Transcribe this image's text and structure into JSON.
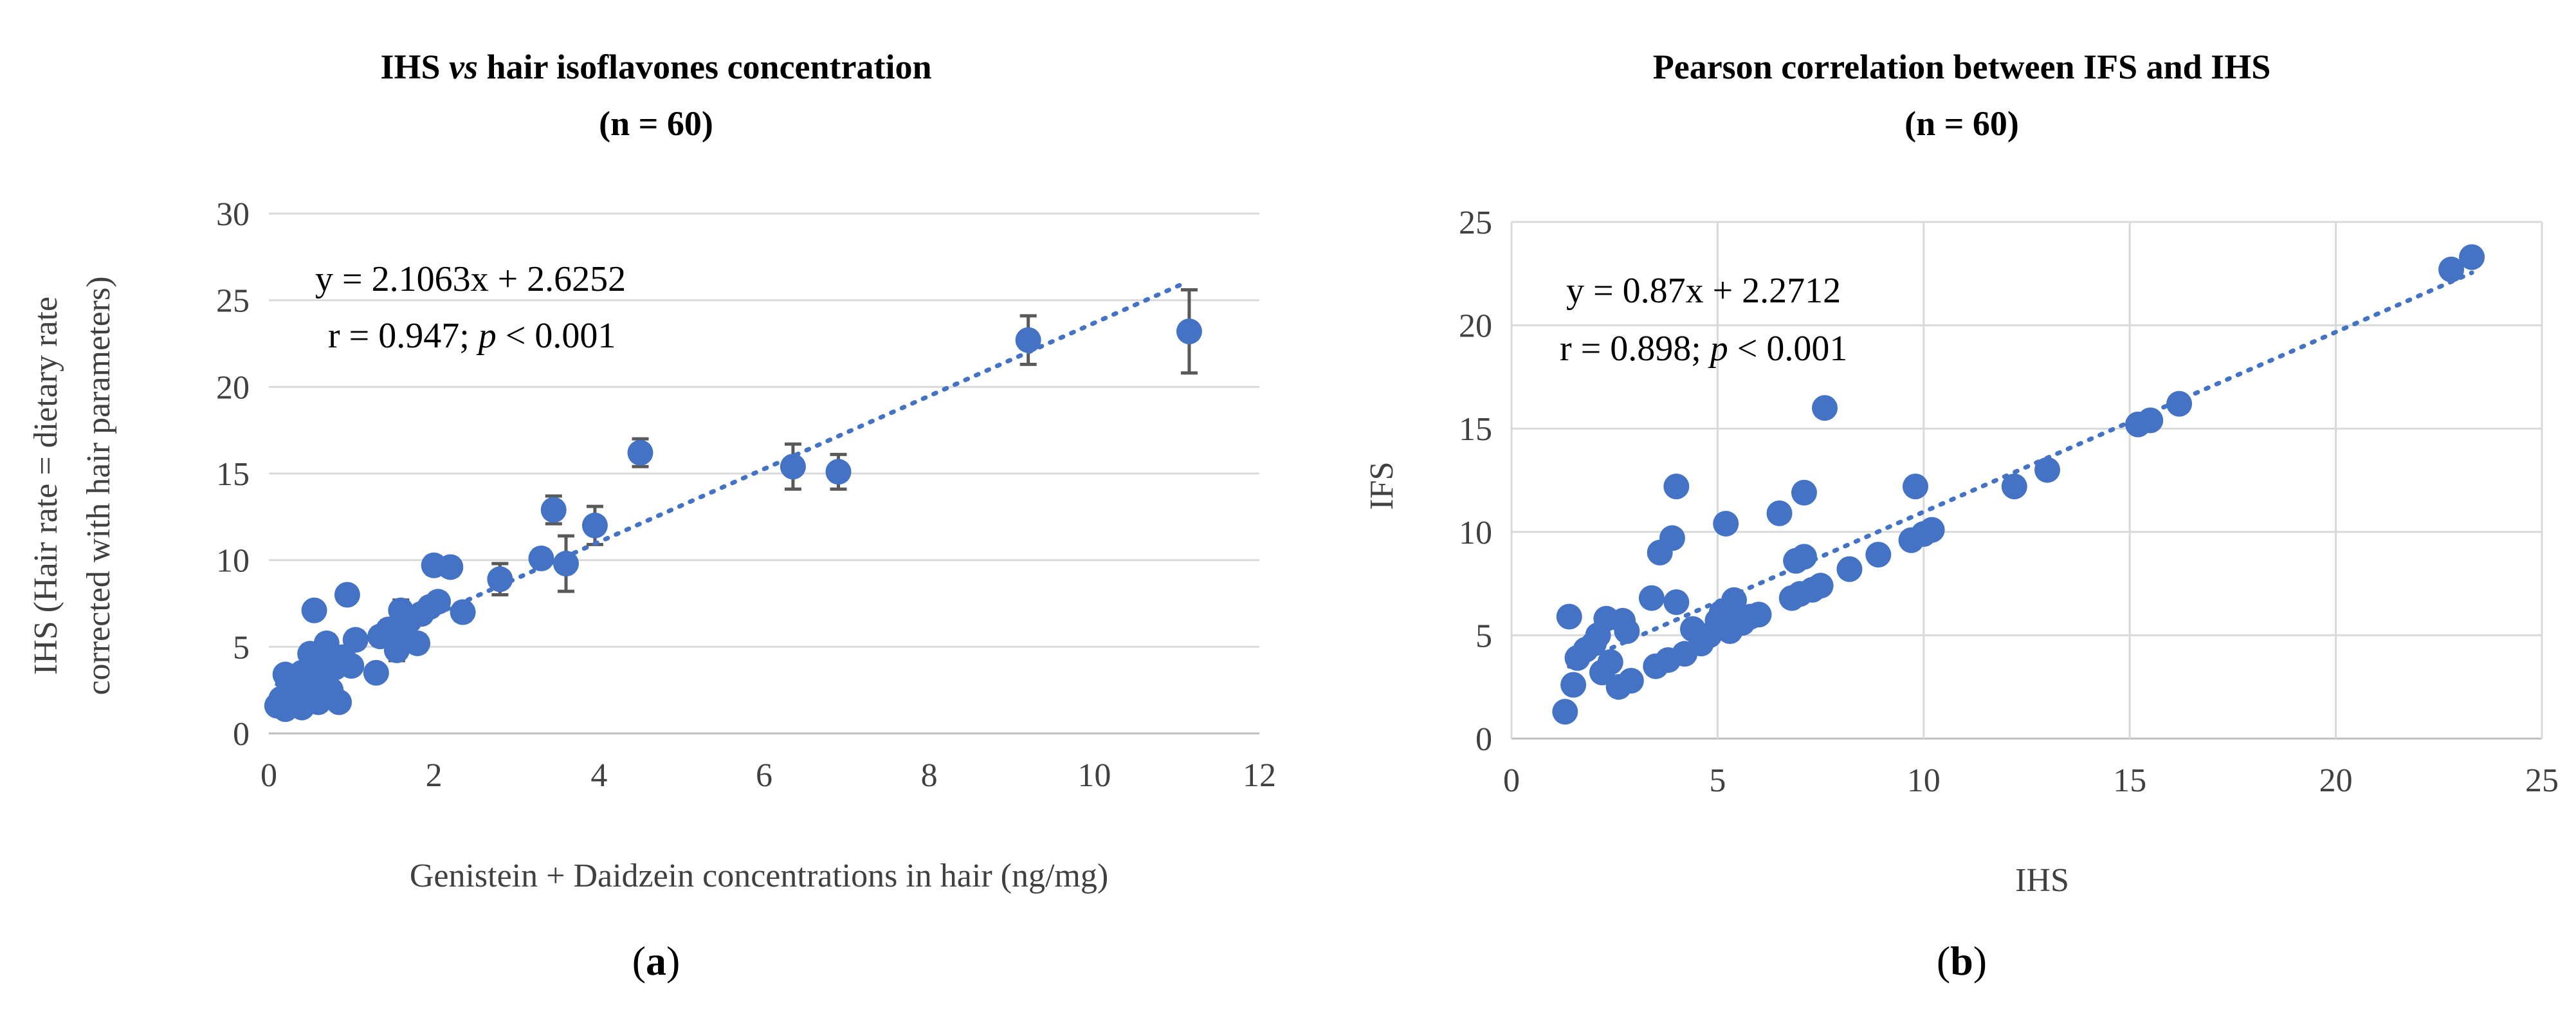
{
  "chart_data": [
    {
      "type": "scatter",
      "panel": "(a)",
      "title": "IHS vs hair isoflavones concentration",
      "title_parts": [
        "IHS ",
        "vs",
        " hair isoflavones concentration"
      ],
      "subtitle": "(n = 60)",
      "xlabel": "Genistein + Daidzein concentrations in hair (ng/mg)",
      "ylabel_line1": "IHS (Hair rate = dietary rate",
      "ylabel_line2": "corrected with hair parameters)",
      "xlim": [
        0,
        12
      ],
      "ylim": [
        0,
        30
      ],
      "xticks": [
        0,
        2,
        4,
        6,
        8,
        10,
        12
      ],
      "yticks": [
        0,
        5,
        10,
        15,
        20,
        25,
        30
      ],
      "grid": "horizontal",
      "equation": "y = 2.1063x + 2.6252",
      "stat_parts": [
        "r = 0.947; ",
        "p",
        " < 0.001"
      ],
      "trendline": {
        "slope": 2.1063,
        "intercept": 2.6252,
        "x_range": [
          0.1,
          11.1
        ]
      },
      "points": [
        {
          "x": 0.1,
          "y": 1.6,
          "err": 0.3
        },
        {
          "x": 0.15,
          "y": 2.0,
          "err": 0.3
        },
        {
          "x": 0.2,
          "y": 1.4,
          "err": 0.2
        },
        {
          "x": 0.2,
          "y": 3.4,
          "err": 0.4
        },
        {
          "x": 0.25,
          "y": 2.6,
          "err": 0.3
        },
        {
          "x": 0.3,
          "y": 1.8,
          "err": 0.3
        },
        {
          "x": 0.3,
          "y": 3.0,
          "err": 0.3
        },
        {
          "x": 0.35,
          "y": 2.2,
          "err": 0.3
        },
        {
          "x": 0.4,
          "y": 1.5,
          "err": 0.2
        },
        {
          "x": 0.4,
          "y": 3.5,
          "err": 0.4
        },
        {
          "x": 0.45,
          "y": 2.8,
          "err": 0.3
        },
        {
          "x": 0.5,
          "y": 2.0,
          "err": 0.3
        },
        {
          "x": 0.5,
          "y": 4.6,
          "err": 0.5
        },
        {
          "x": 0.55,
          "y": 7.1,
          "err": 0.4
        },
        {
          "x": 0.6,
          "y": 3.2,
          "err": 0.3
        },
        {
          "x": 0.6,
          "y": 1.8,
          "err": 0.3
        },
        {
          "x": 0.65,
          "y": 4.0,
          "err": 0.4
        },
        {
          "x": 0.7,
          "y": 5.2,
          "err": 0.5
        },
        {
          "x": 0.75,
          "y": 2.5,
          "err": 0.3
        },
        {
          "x": 0.8,
          "y": 3.8,
          "err": 0.4
        },
        {
          "x": 0.85,
          "y": 1.8,
          "err": 0.3
        },
        {
          "x": 0.9,
          "y": 4.4,
          "err": 0.4
        },
        {
          "x": 0.95,
          "y": 8.0,
          "err": 0.4
        },
        {
          "x": 1.0,
          "y": 3.9,
          "err": 0.4
        },
        {
          "x": 1.05,
          "y": 5.4,
          "err": 0.5
        },
        {
          "x": 1.3,
          "y": 3.5,
          "err": 0.4
        },
        {
          "x": 1.35,
          "y": 5.6,
          "err": 0.5
        },
        {
          "x": 1.45,
          "y": 6.0,
          "err": 0.5
        },
        {
          "x": 1.55,
          "y": 4.8,
          "err": 0.6
        },
        {
          "x": 1.6,
          "y": 7.1,
          "err": 0.6
        },
        {
          "x": 1.65,
          "y": 5.6,
          "err": 0.5
        },
        {
          "x": 1.7,
          "y": 6.5,
          "err": 0.6
        },
        {
          "x": 1.8,
          "y": 5.2,
          "err": 0.5
        },
        {
          "x": 1.85,
          "y": 6.9,
          "err": 0.5
        },
        {
          "x": 1.95,
          "y": 7.3,
          "err": 0.5
        },
        {
          "x": 2.0,
          "y": 9.7,
          "err": 0.5
        },
        {
          "x": 2.05,
          "y": 7.6,
          "err": 0.5
        },
        {
          "x": 2.2,
          "y": 9.6,
          "err": 0.5
        },
        {
          "x": 2.35,
          "y": 7.0,
          "err": 0.5
        },
        {
          "x": 2.8,
          "y": 8.9,
          "err": 0.9
        },
        {
          "x": 3.3,
          "y": 10.1,
          "err": 0.5
        },
        {
          "x": 3.45,
          "y": 12.9,
          "err": 0.8
        },
        {
          "x": 3.6,
          "y": 9.8,
          "err": 1.6
        },
        {
          "x": 3.95,
          "y": 12.0,
          "err": 1.1
        },
        {
          "x": 4.5,
          "y": 16.2,
          "err": 0.8
        },
        {
          "x": 6.35,
          "y": 15.4,
          "err": 1.3
        },
        {
          "x": 6.9,
          "y": 15.1,
          "err": 1.0
        },
        {
          "x": 9.2,
          "y": 22.7,
          "err": 1.4
        },
        {
          "x": 11.15,
          "y": 23.2,
          "err": 2.4
        }
      ]
    },
    {
      "type": "scatter",
      "panel": "(b)",
      "title": "Pearson correlation between IFS and IHS",
      "subtitle": "(n = 60)",
      "xlabel": "IHS",
      "ylabel": "IFS",
      "xlim": [
        0,
        25
      ],
      "ylim": [
        0,
        25
      ],
      "xticks": [
        0,
        5,
        10,
        15,
        20,
        25
      ],
      "yticks": [
        0,
        5,
        10,
        15,
        20,
        25
      ],
      "grid": "both",
      "equation": "y = 0.87x + 2.2712",
      "stat_parts": [
        "r = 0.898; ",
        "p",
        " < 0.001"
      ],
      "trendline": {
        "slope": 0.87,
        "intercept": 2.2712,
        "x_range": [
          1.4,
          23.3
        ]
      },
      "points": [
        {
          "x": 1.3,
          "y": 1.3
        },
        {
          "x": 1.4,
          "y": 5.9
        },
        {
          "x": 1.5,
          "y": 2.6
        },
        {
          "x": 1.6,
          "y": 3.9
        },
        {
          "x": 1.8,
          "y": 4.3
        },
        {
          "x": 2.0,
          "y": 4.6
        },
        {
          "x": 2.1,
          "y": 5.0
        },
        {
          "x": 2.2,
          "y": 3.2
        },
        {
          "x": 2.3,
          "y": 5.8
        },
        {
          "x": 2.4,
          "y": 3.7
        },
        {
          "x": 2.6,
          "y": 2.5
        },
        {
          "x": 2.7,
          "y": 5.7
        },
        {
          "x": 2.8,
          "y": 5.2
        },
        {
          "x": 2.9,
          "y": 2.8
        },
        {
          "x": 3.4,
          "y": 6.8
        },
        {
          "x": 3.5,
          "y": 3.5
        },
        {
          "x": 3.6,
          "y": 9.0
        },
        {
          "x": 3.8,
          "y": 3.8
        },
        {
          "x": 3.9,
          "y": 9.7
        },
        {
          "x": 4.0,
          "y": 6.6
        },
        {
          "x": 4.0,
          "y": 12.2
        },
        {
          "x": 4.2,
          "y": 4.1
        },
        {
          "x": 4.4,
          "y": 5.3
        },
        {
          "x": 4.6,
          "y": 4.6
        },
        {
          "x": 4.8,
          "y": 5.0
        },
        {
          "x": 5.0,
          "y": 5.7
        },
        {
          "x": 5.1,
          "y": 6.1
        },
        {
          "x": 5.2,
          "y": 10.4
        },
        {
          "x": 5.3,
          "y": 5.2
        },
        {
          "x": 5.4,
          "y": 6.7
        },
        {
          "x": 5.6,
          "y": 5.6
        },
        {
          "x": 5.8,
          "y": 5.9
        },
        {
          "x": 6.0,
          "y": 6.0
        },
        {
          "x": 6.5,
          "y": 10.9
        },
        {
          "x": 6.8,
          "y": 6.8
        },
        {
          "x": 6.9,
          "y": 8.6
        },
        {
          "x": 7.0,
          "y": 7.0
        },
        {
          "x": 7.1,
          "y": 8.8
        },
        {
          "x": 7.1,
          "y": 11.9
        },
        {
          "x": 7.3,
          "y": 7.2
        },
        {
          "x": 7.5,
          "y": 7.4
        },
        {
          "x": 7.6,
          "y": 16.0
        },
        {
          "x": 8.2,
          "y": 8.2
        },
        {
          "x": 8.9,
          "y": 8.9
        },
        {
          "x": 9.7,
          "y": 9.6
        },
        {
          "x": 9.8,
          "y": 12.2
        },
        {
          "x": 10.0,
          "y": 9.9
        },
        {
          "x": 10.2,
          "y": 10.1
        },
        {
          "x": 12.2,
          "y": 12.2
        },
        {
          "x": 13.0,
          "y": 13.0
        },
        {
          "x": 15.2,
          "y": 15.2
        },
        {
          "x": 15.5,
          "y": 15.4
        },
        {
          "x": 16.2,
          "y": 16.2
        },
        {
          "x": 22.8,
          "y": 22.7
        },
        {
          "x": 23.3,
          "y": 23.3
        }
      ]
    }
  ]
}
